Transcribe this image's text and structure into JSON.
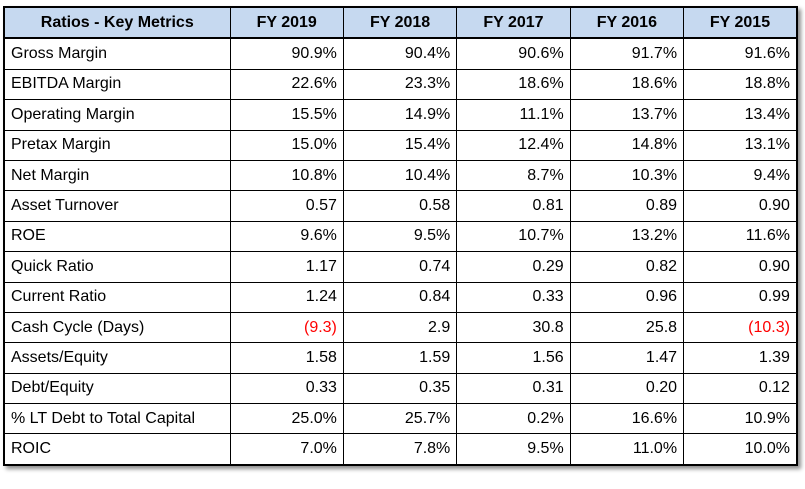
{
  "table": {
    "title": "Ratios - Key Metrics",
    "columns": [
      "FY 2019",
      "FY 2018",
      "FY 2017",
      "FY 2016",
      "FY 2015"
    ],
    "rows": [
      {
        "label": "Gross Margin",
        "values": [
          "90.9%",
          "90.4%",
          "90.6%",
          "91.7%",
          "91.6%"
        ]
      },
      {
        "label": "EBITDA Margin",
        "values": [
          "22.6%",
          "23.3%",
          "18.6%",
          "18.6%",
          "18.8%"
        ]
      },
      {
        "label": "Operating Margin",
        "values": [
          "15.5%",
          "14.9%",
          "11.1%",
          "13.7%",
          "13.4%"
        ]
      },
      {
        "label": "Pretax Margin",
        "values": [
          "15.0%",
          "15.4%",
          "12.4%",
          "14.8%",
          "13.1%"
        ]
      },
      {
        "label": "Net Margin",
        "values": [
          "10.8%",
          "10.4%",
          "8.7%",
          "10.3%",
          "9.4%"
        ]
      },
      {
        "label": "Asset Turnover",
        "values": [
          "0.57",
          "0.58",
          "0.81",
          "0.89",
          "0.90"
        ]
      },
      {
        "label": "ROE",
        "values": [
          "9.6%",
          "9.5%",
          "10.7%",
          "13.2%",
          "11.6%"
        ]
      },
      {
        "label": "Quick Ratio",
        "values": [
          "1.17",
          "0.74",
          "0.29",
          "0.82",
          "0.90"
        ]
      },
      {
        "label": "Current Ratio",
        "values": [
          "1.24",
          "0.84",
          "0.33",
          "0.96",
          "0.99"
        ]
      },
      {
        "label": "Cash Cycle (Days)",
        "values": [
          "(9.3)",
          "2.9",
          "30.8",
          "25.8",
          "(10.3)"
        ]
      },
      {
        "label": "Assets/Equity",
        "values": [
          "1.58",
          "1.59",
          "1.56",
          "1.47",
          "1.39"
        ]
      },
      {
        "label": "Debt/Equity",
        "values": [
          "0.33",
          "0.35",
          "0.31",
          "0.20",
          "0.12"
        ]
      },
      {
        "label": "% LT Debt to Total Capital",
        "values": [
          "25.0%",
          "25.7%",
          "0.2%",
          "16.6%",
          "10.9%"
        ]
      },
      {
        "label": "ROIC",
        "values": [
          "7.0%",
          "7.8%",
          "9.5%",
          "11.0%",
          "10.0%"
        ]
      }
    ]
  },
  "colors": {
    "header_background": "#c6d9f0",
    "negative_value": "#ff0000",
    "grid": "#000000"
  }
}
